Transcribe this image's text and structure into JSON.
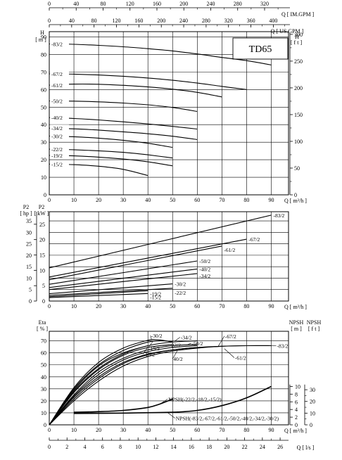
{
  "chart_data": [
    {
      "type": "line",
      "model": "TD65",
      "xlabel": "Q  [ m³/h ]",
      "ylabel_left": "H  [ m ]",
      "ylabel_right": "H  [ f t ]",
      "top_axis_1_label": "Q  [ IM.GPM ]",
      "top_axis_1_ticks": [
        "0",
        "40",
        "80",
        "120",
        "160",
        "200",
        "240",
        "280",
        "320"
      ],
      "top_axis_2_label": "Q  [ US.GPM ]",
      "top_axis_2_ticks": [
        "0",
        "40",
        "80",
        "120",
        "160",
        "200",
        "240",
        "280",
        "320",
        "360",
        "400"
      ],
      "xlim": [
        0,
        97
      ],
      "ylim": [
        0,
        93
      ],
      "x_ticks": [
        "0",
        "10",
        "20",
        "30",
        "40",
        "50",
        "60",
        "70",
        "80",
        "90"
      ],
      "y_ticks": [
        "0",
        "10",
        "20",
        "30",
        "40",
        "50",
        "60",
        "70",
        "80",
        "90"
      ],
      "y_ticks_right": [
        "0",
        "50",
        "100",
        "150",
        "200",
        "250",
        "300"
      ],
      "grid": true,
      "series": [
        {
          "name": "-83/2",
          "x": [
            0,
            10,
            20,
            30,
            40,
            50,
            60,
            70,
            80,
            90
          ],
          "y": [
            86,
            85.8,
            85.2,
            84.4,
            83.3,
            82,
            80.3,
            78.3,
            76.5,
            74
          ]
        },
        {
          "name": "-67/2",
          "x": [
            0,
            10,
            20,
            30,
            40,
            50,
            60,
            70,
            80
          ],
          "y": [
            69,
            68.8,
            68.3,
            67.6,
            66.6,
            65.3,
            63.7,
            61.8,
            60
          ]
        },
        {
          "name": "-61/2",
          "x": [
            0,
            10,
            20,
            30,
            40,
            50,
            60,
            70
          ],
          "y": [
            62.5,
            63.1,
            63,
            62.4,
            61.5,
            60.2,
            58.4,
            55.8
          ]
        },
        {
          "name": "-50/2",
          "x": [
            0,
            10,
            20,
            30,
            40,
            50,
            60
          ],
          "y": [
            53.5,
            53.4,
            53,
            52.3,
            51.3,
            49.8,
            47.5
          ]
        },
        {
          "name": "-40/2",
          "x": [
            0,
            10,
            20,
            30,
            40,
            50,
            60
          ],
          "y": [
            44,
            43.5,
            42.7,
            41.6,
            40.4,
            39,
            37.5
          ]
        },
        {
          "name": "-34/2",
          "x": [
            0,
            10,
            20,
            30,
            40,
            50,
            60
          ],
          "y": [
            38,
            37.6,
            36.9,
            35.9,
            34.8,
            33.4,
            31.5
          ]
        },
        {
          "name": "-30/2",
          "x": [
            0,
            10,
            20,
            30,
            40,
            50
          ],
          "y": [
            33.5,
            33.1,
            32.3,
            31.1,
            29.4,
            27
          ]
        },
        {
          "name": "-22/2",
          "x": [
            0,
            10,
            20,
            30,
            40,
            50
          ],
          "y": [
            26,
            25.7,
            25.1,
            24.2,
            22.8,
            21
          ]
        },
        {
          "name": "-19/2",
          "x": [
            0,
            10,
            20,
            30,
            40,
            50
          ],
          "y": [
            22.5,
            22.2,
            21.5,
            20.4,
            18.8,
            16.5
          ]
        },
        {
          "name": "-15/2",
          "x": [
            0,
            10,
            20,
            30,
            40
          ],
          "y": [
            17.5,
            17.2,
            16.3,
            14.5,
            11
          ]
        }
      ]
    },
    {
      "type": "line",
      "xlabel": "Q  [ m³/h ]",
      "ylabel_left": "P2  [ hp ]",
      "ylabel_kw": "P2  [ kW ]",
      "xlim": [
        0,
        97
      ],
      "ylim": [
        0,
        39
      ],
      "x_ticks": [
        "0",
        "10",
        "20",
        "30",
        "40",
        "50",
        "60",
        "70",
        "80",
        "90"
      ],
      "y_ticks": [
        "0",
        "5",
        "10",
        "15",
        "20",
        "25",
        "30",
        "35"
      ],
      "kw_ticks": [
        "0",
        "5",
        "10",
        "15",
        "20",
        "25"
      ],
      "grid": true,
      "series": [
        {
          "name": "-83/2",
          "x": [
            0,
            90
          ],
          "y": [
            14.5,
            37.5
          ]
        },
        {
          "name": "-67/2",
          "x": [
            0,
            80
          ],
          "y": [
            10.5,
            27
          ]
        },
        {
          "name": "-61/2",
          "x": [
            0,
            70
          ],
          "y": [
            9.3,
            24
          ]
        },
        {
          "name": "-50/2",
          "x": [
            0,
            60
          ],
          "y": [
            7.3,
            17.5
          ]
        },
        {
          "name": "-40/2",
          "x": [
            0,
            60
          ],
          "y": [
            5.9,
            14
          ]
        },
        {
          "name": "-34/2",
          "x": [
            0,
            60
          ],
          "y": [
            5,
            12
          ]
        },
        {
          "name": "-30/2",
          "x": [
            0,
            50
          ],
          "y": [
            3.2,
            7.5
          ]
        },
        {
          "name": "-22/2",
          "x": [
            0,
            50
          ],
          "y": [
            2.5,
            5.6
          ]
        },
        {
          "name": "-19/2",
          "x": [
            0,
            40
          ],
          "y": [
            1.9,
            4.5
          ]
        },
        {
          "name": "-15/2",
          "x": [
            0,
            40
          ],
          "y": [
            1.5,
            3.3
          ]
        }
      ]
    },
    {
      "type": "line",
      "xlabel": "Q  [ m³/h ]",
      "x2label": "Q  [ l/s ]",
      "ylabel_left": "Eta  [ % ]",
      "ylabel_npsh_m": "NPSH  [ m ]",
      "ylabel_npsh_ft": "NPSH  [ f t ]",
      "xlim": [
        0,
        97
      ],
      "ylim": [
        0,
        78
      ],
      "x_ticks": [
        "0",
        "10",
        "20",
        "30",
        "40",
        "50",
        "60",
        "70",
        "80",
        "90"
      ],
      "x2_ticks": [
        "0",
        "2",
        "4",
        "6",
        "8",
        "10",
        "12",
        "14",
        "16",
        "18",
        "20",
        "22",
        "24",
        "26"
      ],
      "y_ticks": [
        "0",
        "10",
        "20",
        "30",
        "40",
        "50",
        "60",
        "70"
      ],
      "npsh_m_ticks": [
        "0",
        "2",
        "4",
        "6",
        "8",
        "10"
      ],
      "npsh_ft_ticks": [
        "0",
        "10",
        "20",
        "30"
      ],
      "grid": true,
      "series": [
        {
          "name": "-30/2",
          "x": [
            0,
            10,
            20,
            30,
            40,
            43,
            46,
            50
          ],
          "y": [
            0,
            31,
            52,
            64,
            70.5,
            71,
            70.5,
            69
          ]
        },
        {
          "name": "-19/2",
          "x": [
            0,
            10,
            20,
            30,
            40,
            45,
            50
          ],
          "y": [
            0,
            30,
            50,
            62,
            69,
            70,
            69.5
          ]
        },
        {
          "name": "-15/2",
          "x": [
            0,
            10,
            20,
            30,
            40
          ],
          "y": [
            0,
            29,
            49,
            60,
            66
          ]
        },
        {
          "name": "-34/2",
          "x": [
            0,
            10,
            20,
            30,
            40,
            50,
            60
          ],
          "y": [
            0,
            28,
            47,
            59,
            66,
            69,
            70
          ]
        },
        {
          "name": "-22/2",
          "x": [
            0,
            10,
            20,
            30,
            40,
            50
          ],
          "y": [
            0,
            27,
            46,
            58,
            64.5,
            67
          ]
        },
        {
          "name": "-50/2",
          "x": [
            0,
            10,
            20,
            30,
            40,
            50,
            60
          ],
          "y": [
            0,
            25,
            44,
            55.5,
            62.5,
            66,
            67
          ]
        },
        {
          "name": "40/2",
          "x": [
            0,
            10,
            20,
            30,
            40,
            50,
            60
          ],
          "y": [
            0,
            24,
            42,
            54,
            61,
            64.5,
            66
          ]
        },
        {
          "name": "-67/2",
          "x": [
            0,
            10,
            20,
            30,
            40,
            50,
            60,
            70,
            80,
            90
          ],
          "y": [
            0,
            23,
            40,
            52,
            59,
            62.5,
            64.5,
            65.5,
            66,
            66
          ]
        },
        {
          "name": "-61/2",
          "x": [
            0,
            10,
            20,
            30,
            40,
            50,
            60,
            70
          ],
          "y": [
            0,
            21.5,
            38.5,
            51,
            58.5,
            62.5,
            64.5,
            65.5
          ]
        },
        {
          "name": "-83/2",
          "x": [
            0,
            10,
            20,
            30,
            40,
            50,
            60,
            70,
            80,
            90
          ],
          "y": [
            0,
            20,
            36.5,
            49,
            57,
            61.5,
            64,
            65.5,
            66,
            66
          ]
        },
        {
          "name": "NPSH(-22/2,-18/2,-15/2)",
          "x": [
            10,
            20,
            30,
            40,
            45,
            50
          ],
          "y": [
            10.5,
            11,
            12,
            14.5,
            17.5,
            21.5
          ]
        },
        {
          "name": "NPSH(-83/2,-67/2,-61/2,-50/2,-40/2,-34/2,-30/2)",
          "x": [
            10,
            30,
            50,
            60,
            70,
            80,
            90
          ],
          "y": [
            9.5,
            9.8,
            10.5,
            12,
            16,
            22.5,
            32
          ]
        }
      ]
    }
  ]
}
